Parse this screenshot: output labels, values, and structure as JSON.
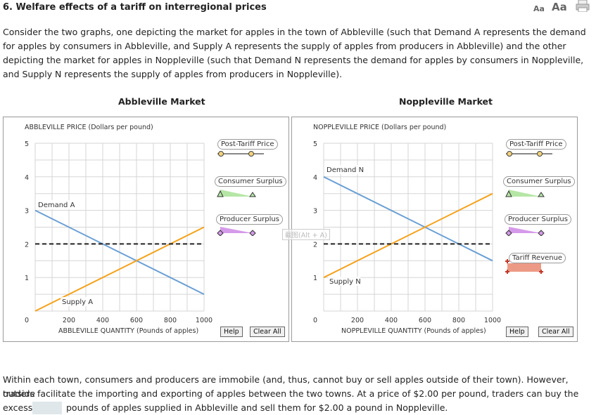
{
  "header": {
    "title": "6. Welfare effects of a tariff on interregional prices",
    "font_small": "Aa",
    "font_large": "Aa"
  },
  "intro": "Consider the two graphs, one depicting the market for apples in the town of Abbleville (such that Demand A represents the demand for apples by consumers in Abbleville, and Supply A represents the supply of apples from producers in Abbleville) and the other depicting the market for apples in Noppleville (such that Demand N represents the demand for apples by consumers in Noppleville, and Supply N represents the supply of apples from producers in Noppleville).",
  "abbleville": {
    "market_title": "Abbleville Market",
    "y_title": "ABBLEVILLE PRICE (Dollars per pound)",
    "x_title": "ABBLEVILLE QUANTITY (Pounds of apples)",
    "demand_label": "Demand A",
    "supply_label": "Supply A",
    "legend": [
      "Post-Tariff Price",
      "Consumer Surplus",
      "Producer Surplus"
    ],
    "help": "Help",
    "clear": "Clear All"
  },
  "noppleville": {
    "market_title": "Noppleville Market",
    "y_title": "NOPPLEVILLE PRICE (Dollars per pound)",
    "x_title": "NOPPLEVILLE QUANTITY (Pounds of apples)",
    "demand_label": "Demand N",
    "supply_label": "Supply N",
    "legend": [
      "Post-Tariff Price",
      "Consumer Surplus",
      "Producer Surplus",
      "Tariff Revenue"
    ],
    "help": "Help",
    "clear": "Clear All"
  },
  "watermark": "截图(Alt + A)",
  "axis": {
    "y_ticks": [
      "5",
      "4",
      "3",
      "2",
      "1",
      "0"
    ],
    "x_ticks": [
      "200",
      "400",
      "600",
      "800",
      "1000"
    ]
  },
  "chart_data": [
    {
      "type": "line",
      "title": "Abbleville Market",
      "xlabel": "ABBLEVILLE QUANTITY (Pounds of apples)",
      "ylabel": "ABBLEVILLE PRICE (Dollars per pound)",
      "xlim": [
        0,
        1000
      ],
      "ylim": [
        0,
        5
      ],
      "series": [
        {
          "name": "Demand A",
          "x": [
            0,
            1000
          ],
          "y": [
            3,
            0.5
          ]
        },
        {
          "name": "Supply A",
          "x": [
            0,
            1000
          ],
          "y": [
            0,
            2.5
          ]
        },
        {
          "name": "Post-Tariff Price",
          "x": [
            0,
            1000
          ],
          "y": [
            2,
            2
          ]
        }
      ]
    },
    {
      "type": "line",
      "title": "Noppleville Market",
      "xlabel": "NOPPLEVILLE QUANTITY (Pounds of apples)",
      "ylabel": "NOPPLEVILLE PRICE (Dollars per pound)",
      "xlim": [
        0,
        1000
      ],
      "ylim": [
        0,
        5
      ],
      "series": [
        {
          "name": "Demand N",
          "x": [
            0,
            1000
          ],
          "y": [
            4,
            1.5
          ]
        },
        {
          "name": "Supply N",
          "x": [
            0,
            1000
          ],
          "y": [
            1,
            3.5
          ]
        },
        {
          "name": "Post-Tariff Price",
          "x": [
            0,
            1000
          ],
          "y": [
            2,
            2
          ]
        }
      ]
    }
  ],
  "colors": {
    "demand": "#6a9fd4",
    "supply": "#f5a21b",
    "consumer_surplus": "#b6e6a6",
    "producer_surplus": "#d59ae9",
    "tariff_revenue": "#ec9a85"
  },
  "outro_line1": "Within each town, consumers and producers are immobile (and, thus, cannot buy or sell apples outside of their town). However, outside",
  "outro_line2": "traders facilitate the importing and exporting of apples between the two towns. At a price of $2.00 per pound, traders can buy the",
  "outro_pre": "excess",
  "outro_post": "pounds of apples supplied in Abbleville and sell them for $2.00 a pound in Noppleville."
}
